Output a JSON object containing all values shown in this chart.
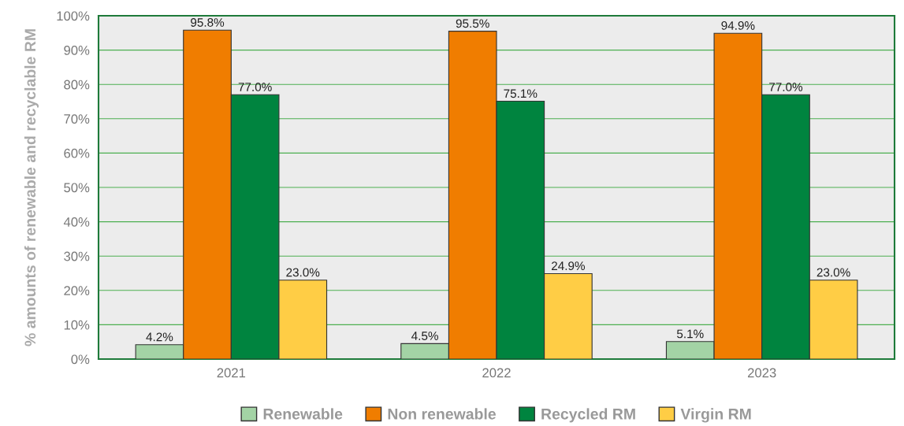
{
  "chart_data": {
    "type": "bar",
    "ylabel": "% amounts of renewable and recyclable RM",
    "categories": [
      "2021",
      "2022",
      "2023"
    ],
    "series": [
      {
        "name": "Renewable",
        "color": "#a3d3a5",
        "values": [
          4.2,
          4.5,
          5.1
        ],
        "value_labels": [
          "4.2%",
          "4.5%",
          "5.1%"
        ]
      },
      {
        "name": "Non renewable",
        "color": "#f07d00",
        "values": [
          95.8,
          95.5,
          94.9
        ],
        "value_labels": [
          "95.8%",
          "95.5%",
          "94.9%"
        ]
      },
      {
        "name": "Recycled RM",
        "color": "#00843f",
        "values": [
          77.0,
          75.1,
          77.0
        ],
        "value_labels": [
          "77.0%",
          "75.1%",
          "77.0%"
        ]
      },
      {
        "name": "Virgin RM",
        "color": "#ffcd45",
        "values": [
          23.0,
          24.9,
          23.0
        ],
        "value_labels": [
          "23.0%",
          "24.9%",
          "23.0%"
        ]
      }
    ],
    "ylim": [
      0,
      100
    ],
    "yticks": [
      {
        "value": 0,
        "label": "0%"
      },
      {
        "value": 10,
        "label": "10%"
      },
      {
        "value": 20,
        "label": "20%"
      },
      {
        "value": 30,
        "label": "30%"
      },
      {
        "value": 40,
        "label": "40%"
      },
      {
        "value": 50,
        "label": "50%"
      },
      {
        "value": 60,
        "label": "60%"
      },
      {
        "value": 70,
        "label": "70%"
      },
      {
        "value": 80,
        "label": "80%"
      },
      {
        "value": 90,
        "label": "90%"
      },
      {
        "value": 100,
        "label": "100%"
      }
    ],
    "grid": "y",
    "legend": "bottom"
  }
}
